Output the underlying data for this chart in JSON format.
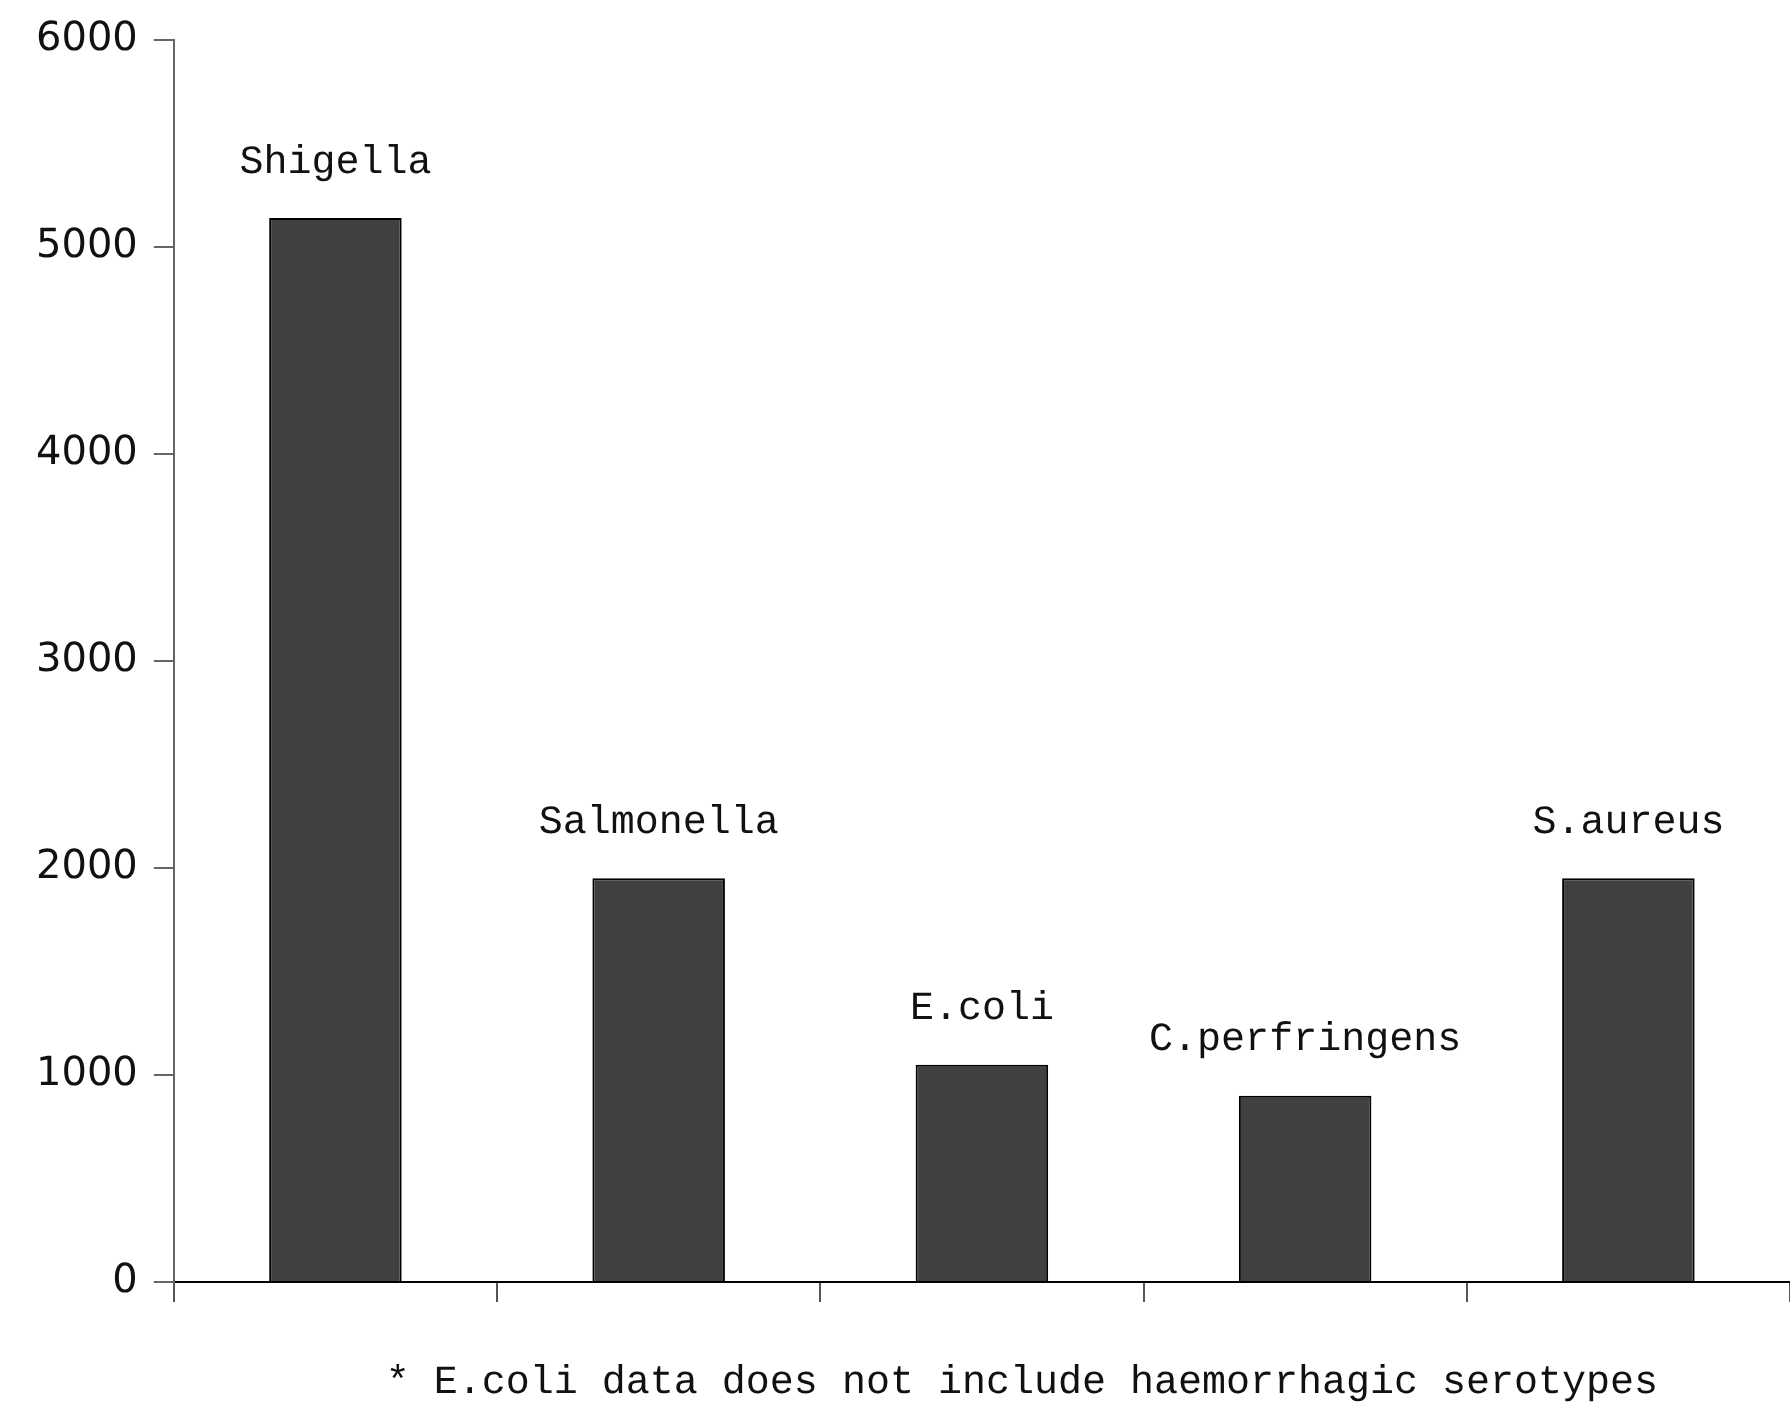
{
  "chart_data": {
    "type": "bar",
    "categories": [
      "Shigella",
      "Salmonella",
      "E.coli",
      "C.perfringens",
      "S.aureus"
    ],
    "values": [
      5140,
      1950,
      1050,
      900,
      1950
    ],
    "color": "#404040",
    "ylim": [
      0,
      6000
    ],
    "yticks": [
      0,
      1000,
      2000,
      3000,
      4000,
      5000,
      6000
    ],
    "grid": false,
    "legend": false,
    "annotations": [
      "* E.coli data does not include haemorrhagic serotypes"
    ]
  }
}
